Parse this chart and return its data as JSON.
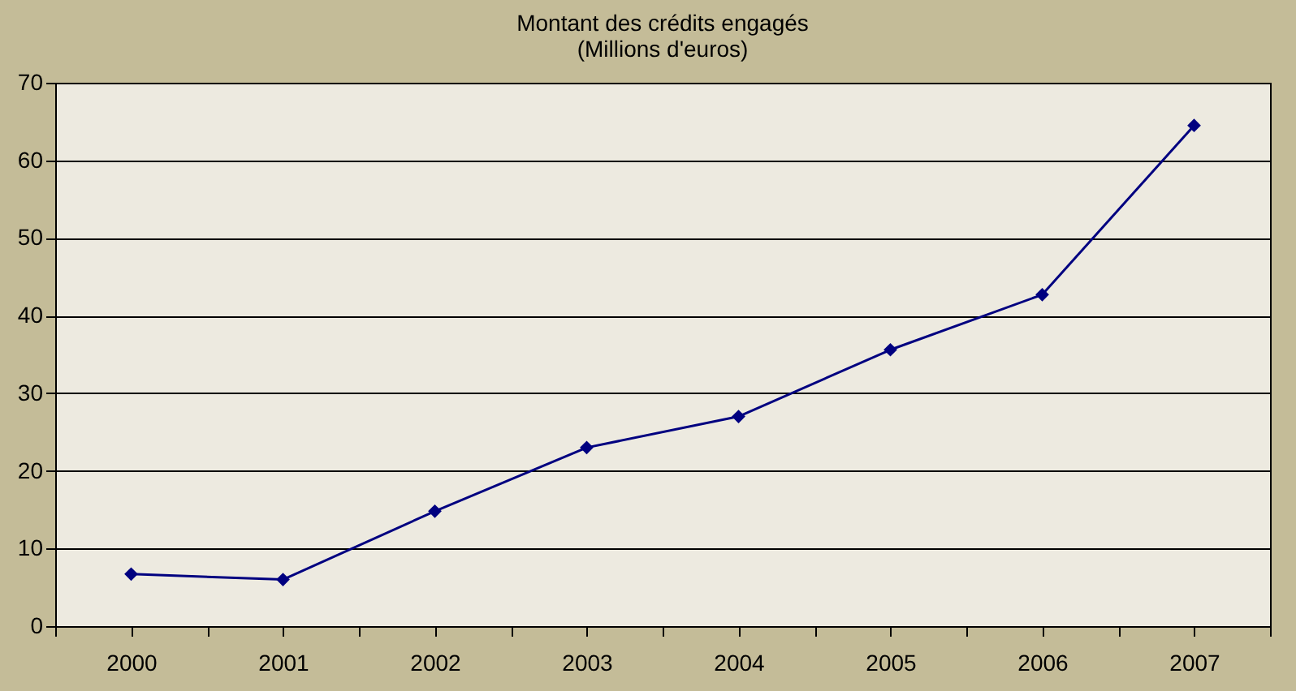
{
  "chart_data": {
    "type": "line",
    "title": [
      "Montant des crédits engagés",
      "(Millions d'euros)"
    ],
    "categories": [
      "2000",
      "2001",
      "2002",
      "2003",
      "2004",
      "2005",
      "2006",
      "2007"
    ],
    "series": [
      {
        "color": "#000080",
        "values": [
          6.7,
          6.0,
          14.8,
          23.0,
          27.0,
          35.6,
          42.7,
          64.5
        ]
      }
    ],
    "ylim": [
      0,
      70
    ],
    "yticks": [
      0,
      10,
      20,
      30,
      40,
      50,
      60,
      70
    ],
    "grid": "y",
    "marker": "diamond",
    "line_style": "solid",
    "legend": false
  }
}
